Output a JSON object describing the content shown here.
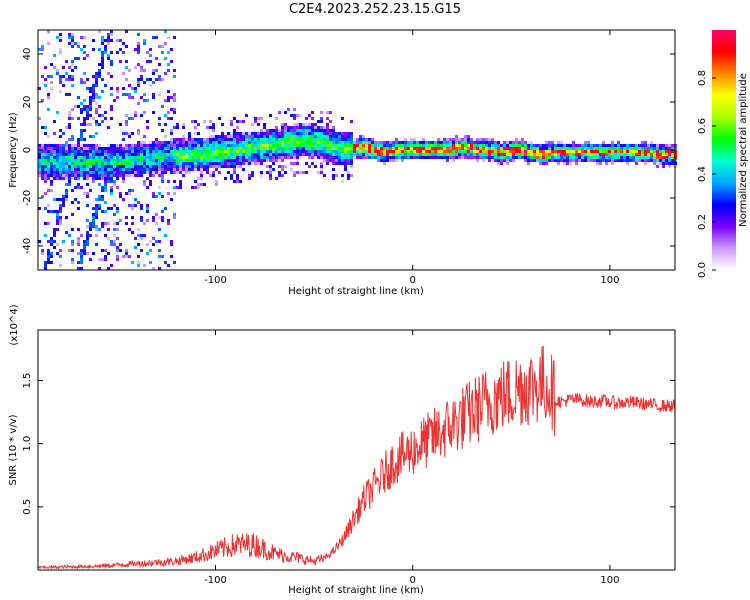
{
  "title": "C2E4.2023.252.23.15.G15",
  "chart_data": [
    {
      "type": "heatmap",
      "title": "C2E4.2023.252.23.15.G15",
      "xlabel": "Height of straight line (km)",
      "ylabel": "Frequency (Hz)",
      "xlim": [
        -190,
        133
      ],
      "ylim": [
        -50,
        50
      ],
      "x_ticks": [
        -100,
        0,
        100
      ],
      "y_ticks": [
        -40,
        -20,
        0,
        20,
        40
      ],
      "colorbar": {
        "label": "Normalized spectral amplitude",
        "range": [
          0.0,
          1.0
        ],
        "ticks": [
          0.0,
          0.2,
          0.4,
          0.6,
          0.8
        ],
        "colormap": [
          "#ffffff",
          "#cc99ff",
          "#7700ff",
          "#0000ff",
          "#00aaff",
          "#00ffcc",
          "#00ff00",
          "#aaff00",
          "#ffff00",
          "#ff8800",
          "#ff0000",
          "#ff0066"
        ]
      },
      "ridge": {
        "x": [
          -150,
          -130,
          -110,
          -90,
          -70,
          -55,
          -45,
          -35,
          -25,
          -15,
          -5,
          5,
          15,
          25,
          35,
          45,
          55,
          65,
          75,
          85,
          95,
          105,
          115,
          125,
          133
        ],
        "y": [
          -5,
          -3,
          -2,
          0,
          2,
          4,
          3,
          0,
          1,
          -1,
          0,
          0,
          0,
          1,
          0,
          -1,
          0,
          -2,
          -1,
          -1,
          -1,
          -1,
          -1,
          -2,
          -2
        ]
      }
    },
    {
      "type": "line",
      "xlabel": "Height of straight line (km)",
      "ylabel": "SNR (10 * v/v)",
      "y_multiplier": "(x10^4)",
      "xlim": [
        -190,
        133
      ],
      "ylim": [
        0,
        19000
      ],
      "x_ticks": [
        -100,
        0,
        100
      ],
      "y_ticks": [
        5000,
        10000,
        15000
      ],
      "y_tick_labels": [
        "0.5",
        "1.0",
        "1.5"
      ],
      "color": "#ee3333",
      "x": [
        -190,
        -160,
        -140,
        -120,
        -110,
        -100,
        -90,
        -80,
        -70,
        -60,
        -50,
        -45,
        -40,
        -35,
        -30,
        -25,
        -20,
        -15,
        -10,
        -5,
        0,
        5,
        10,
        15,
        20,
        25,
        30,
        35,
        40,
        45,
        50,
        55,
        60,
        65,
        70,
        72,
        75,
        80,
        85,
        90,
        95,
        100,
        105,
        110,
        115,
        120,
        125,
        133
      ],
      "y": [
        200,
        300,
        500,
        700,
        1000,
        1500,
        2000,
        2000,
        1300,
        1000,
        700,
        900,
        1500,
        2500,
        4000,
        5500,
        6500,
        7500,
        8500,
        9000,
        9500,
        10000,
        10500,
        11000,
        11500,
        12000,
        12500,
        13000,
        13500,
        13800,
        14000,
        14500,
        14500,
        14800,
        14500,
        13500,
        13300,
        13500,
        13500,
        13300,
        13400,
        13300,
        13200,
        13300,
        13200,
        13100,
        13000,
        13000
      ]
    }
  ]
}
